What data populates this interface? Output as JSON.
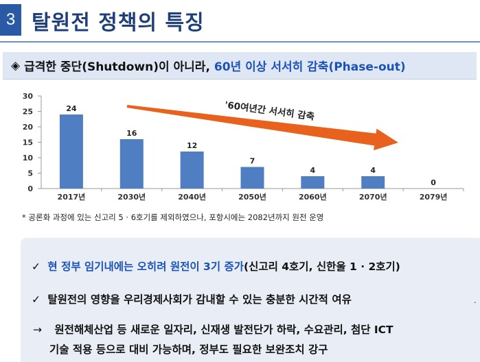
{
  "header": {
    "section_number": "3",
    "title": "탈원전 정책의 특징"
  },
  "subtitle": {
    "bullet": "◈",
    "text1": "급격한 중단(Shutdown)이 아니라,",
    "highlight": "60년 이상 서서히 감축(Phase-out)"
  },
  "chart_data": {
    "type": "bar",
    "categories": [
      "2017년",
      "2030년",
      "2040년",
      "2050년",
      "2060년",
      "2070년",
      "2079년"
    ],
    "values": [
      24,
      16,
      12,
      7,
      4,
      4,
      0
    ],
    "title": "",
    "xlabel": "",
    "ylabel": "",
    "ylim": [
      0,
      30
    ],
    "yticks": [
      0,
      5,
      10,
      15,
      20,
      25,
      30
    ],
    "grid": false,
    "legend": "none",
    "annotation": "'60여년간 서서히 감축",
    "bar_color": "#4f7fc2",
    "arrow_color": "#e8611d"
  },
  "footnote": "* 공론화 과정에 있는 신고리 5 · 6호기를 제외하였으나, 포항시에는 2082년까지 원전 운영",
  "points": {
    "p1_check": "✓",
    "p1_blue": "현 정부 임기내에는 오히려 원전이 3기 증가",
    "p1_rest": "(신고리 4호기, 신한울 1 · 2호기)",
    "p2_check": "✓",
    "p2_text": "탈원전의 영향을 우리경제사회가 감내할 수 있는 충분한 시간적 여유",
    "p3_arrow": "→",
    "p3_text": "원전해체산업 등 새로운 일자리, 신재생 발전단가 하락, 수요관리, 첨단 ICT",
    "p3_cont": "기술 적용 등으로 대비 가능하며, 정부도 필요한 보완조치 강구",
    "stray_mark": "."
  }
}
